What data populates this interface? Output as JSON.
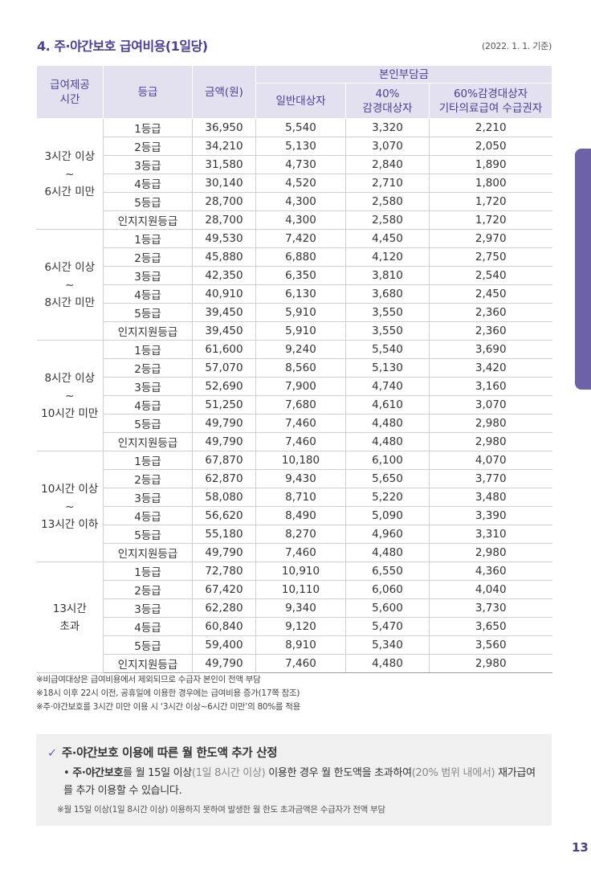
{
  "title": "4. 주·야간보호 급여비용(1일당)",
  "basis": "(2022. 1. 1. 기준)",
  "table": {
    "h_period": "급여제공\n시간",
    "h_grade": "등급",
    "h_amount": "금액(원)",
    "h_copay": "본인부담금",
    "h_general": "일반대상자",
    "h_40": "40%\n감경대상자",
    "h_60": "60%감경대상자\n기타의료급여 수급권자",
    "groups": [
      {
        "period": "3시간 이상\n~\n6시간 미만",
        "rows": [
          [
            "1등급",
            "36,950",
            "5,540",
            "3,320",
            "2,210"
          ],
          [
            "2등급",
            "34,210",
            "5,130",
            "3,070",
            "2,050"
          ],
          [
            "3등급",
            "31,580",
            "4,730",
            "2,840",
            "1,890"
          ],
          [
            "4등급",
            "30,140",
            "4,520",
            "2,710",
            "1,800"
          ],
          [
            "5등급",
            "28,700",
            "4,300",
            "2,580",
            "1,720"
          ],
          [
            "인지지원등급",
            "28,700",
            "4,300",
            "2,580",
            "1,720"
          ]
        ]
      },
      {
        "period": "6시간 이상\n~\n8시간 미만",
        "rows": [
          [
            "1등급",
            "49,530",
            "7,420",
            "4,450",
            "2,970"
          ],
          [
            "2등급",
            "45,880",
            "6,880",
            "4,120",
            "2,750"
          ],
          [
            "3등급",
            "42,350",
            "6,350",
            "3,810",
            "2,540"
          ],
          [
            "4등급",
            "40,910",
            "6,130",
            "3,680",
            "2,450"
          ],
          [
            "5등급",
            "39,450",
            "5,910",
            "3,550",
            "2,360"
          ],
          [
            "인지지원등급",
            "39,450",
            "5,910",
            "3,550",
            "2,360"
          ]
        ]
      },
      {
        "period": "8시간 이상\n~\n10시간 미만",
        "rows": [
          [
            "1등급",
            "61,600",
            "9,240",
            "5,540",
            "3,690"
          ],
          [
            "2등급",
            "57,070",
            "8,560",
            "5,130",
            "3,420"
          ],
          [
            "3등급",
            "52,690",
            "7,900",
            "4,740",
            "3,160"
          ],
          [
            "4등급",
            "51,250",
            "7,680",
            "4,610",
            "3,070"
          ],
          [
            "5등급",
            "49,790",
            "7,460",
            "4,480",
            "2,980"
          ],
          [
            "인지지원등급",
            "49,790",
            "7,460",
            "4,480",
            "2,980"
          ]
        ]
      },
      {
        "period": "10시간 이상\n~\n13시간 이하",
        "rows": [
          [
            "1등급",
            "67,870",
            "10,180",
            "6,100",
            "4,070"
          ],
          [
            "2등급",
            "62,870",
            "9,430",
            "5,650",
            "3,770"
          ],
          [
            "3등급",
            "58,080",
            "8,710",
            "5,220",
            "3,480"
          ],
          [
            "4등급",
            "56,620",
            "8,490",
            "5,090",
            "3,390"
          ],
          [
            "5등급",
            "55,180",
            "8,270",
            "4,960",
            "3,310"
          ],
          [
            "인지지원등급",
            "49,790",
            "7,460",
            "4,480",
            "2,980"
          ]
        ]
      },
      {
        "period": "13시간\n초과",
        "rows": [
          [
            "1등급",
            "72,780",
            "10,910",
            "6,550",
            "4,360"
          ],
          [
            "2등급",
            "67,420",
            "10,110",
            "6,060",
            "4,040"
          ],
          [
            "3등급",
            "62,280",
            "9,340",
            "5,600",
            "3,730"
          ],
          [
            "4등급",
            "60,840",
            "9,120",
            "5,470",
            "3,650"
          ],
          [
            "5등급",
            "59,400",
            "8,910",
            "5,340",
            "3,560"
          ],
          [
            "인지지원등급",
            "49,790",
            "7,460",
            "4,480",
            "2,980"
          ]
        ]
      }
    ]
  },
  "notes": [
    "※비급여대상은 급여비용에서 제외되므로 수급자 본인이 전액 부담",
    "※18시 이후 22시 이전, 공휴일에 이용한 경우에는 급여비용 증가(17쪽 참조)",
    "※주·야간보호를 3시간 미만 이용 시 ‘3시간 이상~6시간 미만’의 80%를 적용"
  ],
  "box": {
    "check": "✓",
    "title": "주·야간보호 이용에 따른 월 한도액 추가 산정",
    "bullet": "•",
    "bold": "주·야간보호",
    "t1": "를 월 15일 이상",
    "g1": "(1일 8시간 이상)",
    "t2": " 이용한 경우 월 한도액을 초과하여",
    "g2": "(20% 범위 내에서)",
    "t3": " 재가급여를 추가 이용할 수 있습니다.",
    "note": "※월 15일 이상(1일 8시간 이상) 이용하지 못하여 발생한 월 한도 초과금액은 수급자가 전액 부담"
  },
  "page_number": "13"
}
